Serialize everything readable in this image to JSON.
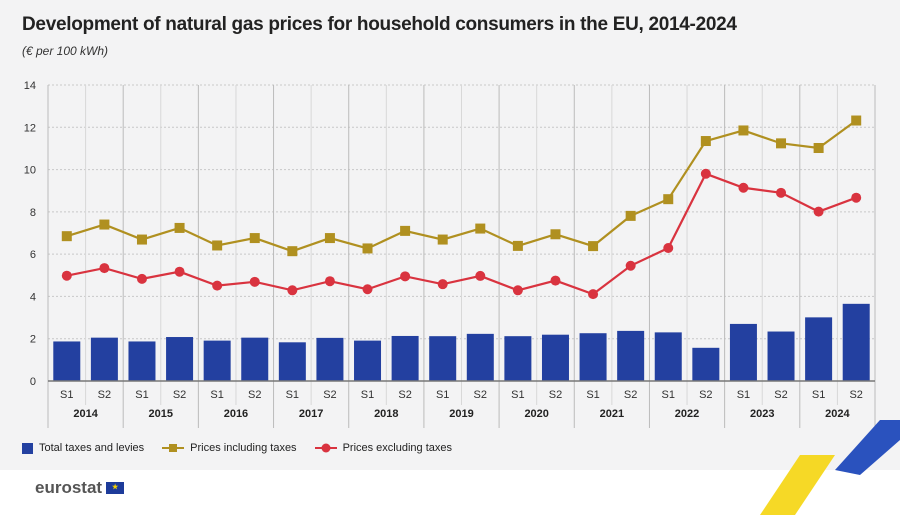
{
  "title": "Development of natural gas prices for household consumers in the EU, 2014-2024",
  "subtitle": "(€ per 100 kWh)",
  "logo_text": "eurostat",
  "colors": {
    "bars": "#2340a0",
    "incl": "#b09020",
    "excl": "#d9333f"
  },
  "chart_data": {
    "type": "bar+line",
    "ylim": [
      0,
      14
    ],
    "yticks": [
      "0",
      "2",
      "4",
      "6",
      "8",
      "10",
      "12",
      "14"
    ],
    "grid": true,
    "legend_position": "bottom-left",
    "years": [
      "2014",
      "2015",
      "2016",
      "2017",
      "2018",
      "2019",
      "2020",
      "2021",
      "2022",
      "2023",
      "2024"
    ],
    "semesters": [
      "S1",
      "S2"
    ],
    "series": [
      {
        "name": "Total taxes and levies",
        "type": "bar",
        "values": [
          1.87,
          2.05,
          1.87,
          2.08,
          1.91,
          2.05,
          1.83,
          2.04,
          1.91,
          2.13,
          2.12,
          2.23,
          2.12,
          2.19,
          2.26,
          2.37,
          2.3,
          1.57,
          2.7,
          2.34,
          3.01,
          3.65
        ]
      },
      {
        "name": "Prices including taxes",
        "type": "line",
        "marker": "square",
        "values": [
          6.85,
          7.4,
          6.69,
          7.24,
          6.41,
          6.76,
          6.14,
          6.76,
          6.27,
          7.1,
          6.69,
          7.21,
          6.39,
          6.94,
          6.38,
          7.81,
          8.6,
          11.35,
          11.85,
          11.24,
          11.02,
          12.32
        ]
      },
      {
        "name": "Prices excluding taxes",
        "type": "line",
        "marker": "circle",
        "values": [
          4.98,
          5.34,
          4.83,
          5.17,
          4.51,
          4.69,
          4.29,
          4.72,
          4.34,
          4.95,
          4.58,
          4.97,
          4.29,
          4.75,
          4.11,
          5.45,
          6.29,
          9.8,
          9.14,
          8.9,
          8.01,
          8.67
        ]
      }
    ]
  }
}
